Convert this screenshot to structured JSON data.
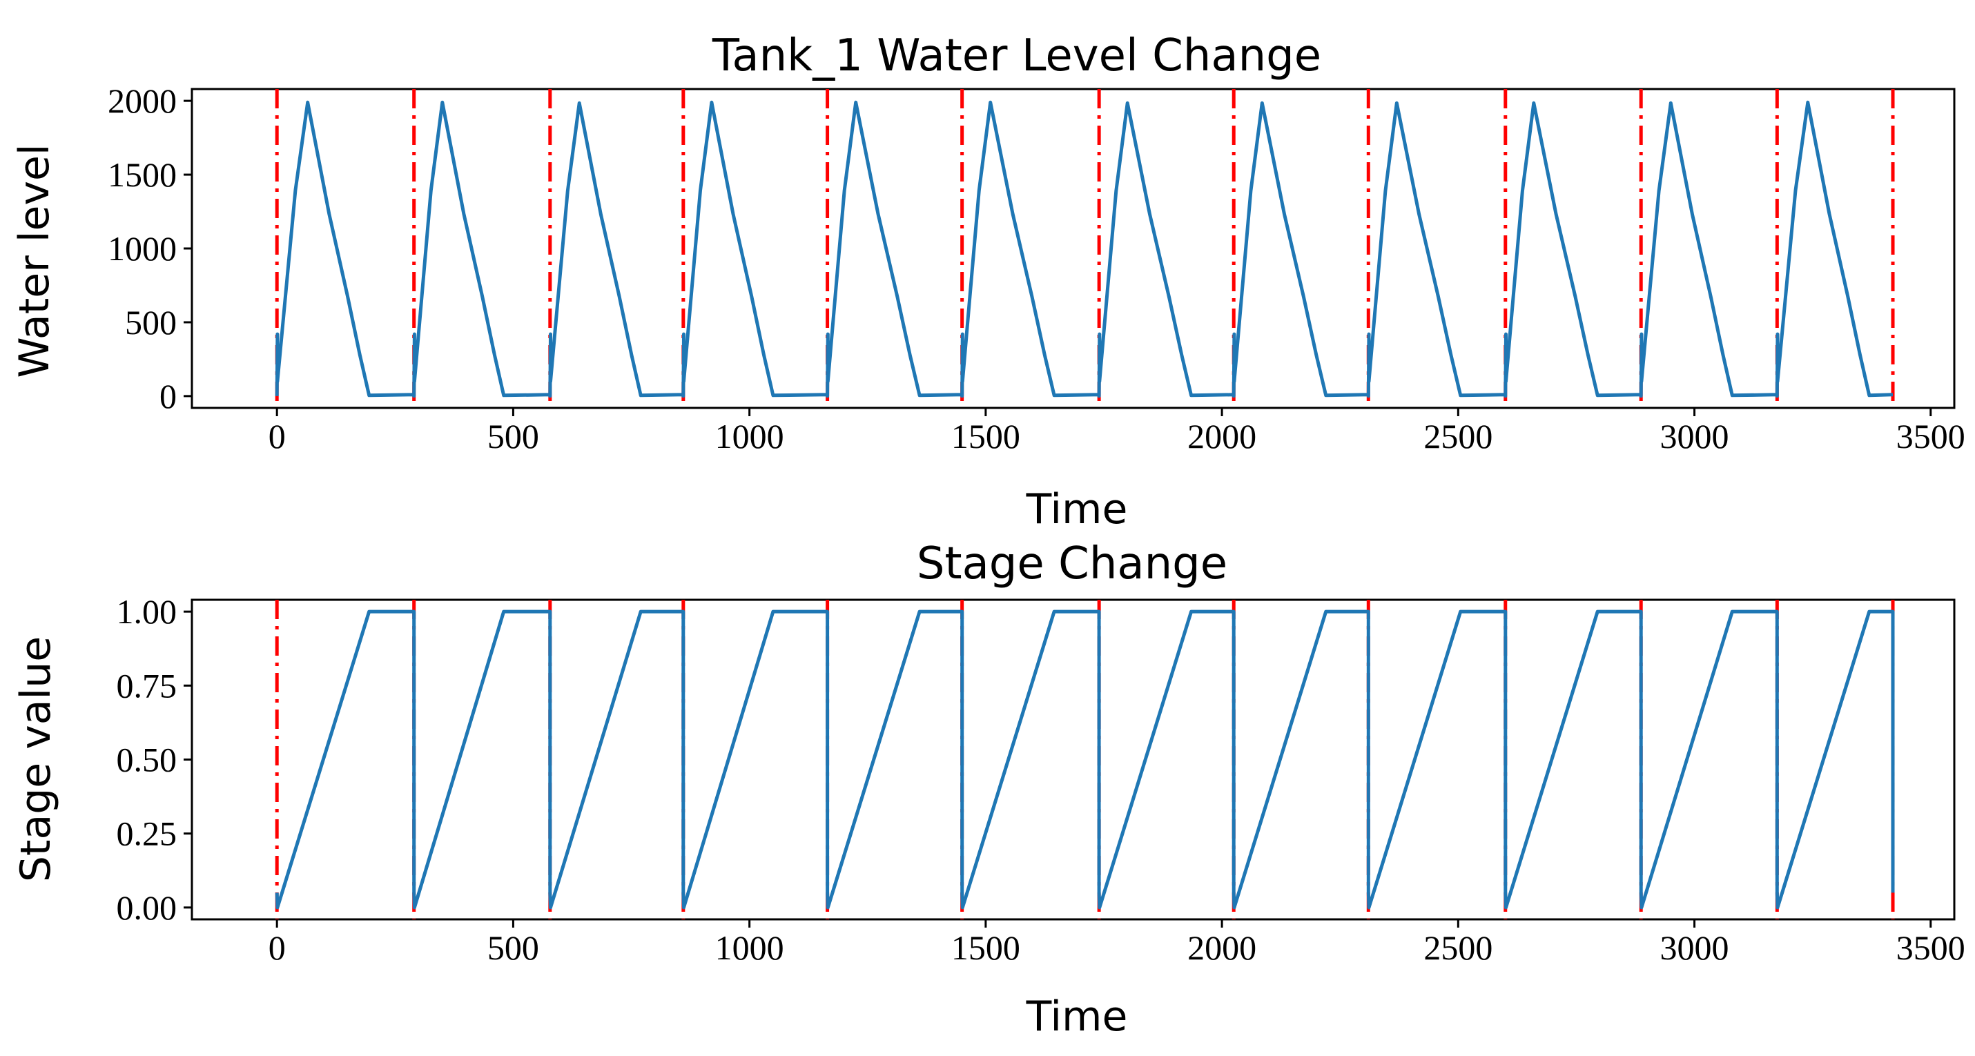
{
  "colors": {
    "series": "#1f77b4",
    "marker_line": "#ff0000",
    "axes": "#000000"
  },
  "chart_data": [
    {
      "type": "line",
      "title": "Tank_1 Water Level Change",
      "xlabel": "Time",
      "ylabel": "Water level",
      "xlim": [
        -180,
        3550
      ],
      "ylim": [
        -80,
        2080
      ],
      "xticks": [
        0,
        500,
        1000,
        1500,
        2000,
        2500,
        3000,
        3500
      ],
      "xtick_labels": [
        "0",
        "500",
        "1000",
        "1500",
        "2000",
        "2500",
        "3000",
        "3500"
      ],
      "yticks": [
        0,
        500,
        1000,
        1500,
        2000
      ],
      "ytick_labels": [
        "0",
        "500",
        "1000",
        "1500",
        "2000"
      ],
      "stage_boundaries": [
        0,
        290,
        578,
        860,
        1165,
        1450,
        1740,
        2025,
        2310,
        2600,
        2887,
        3175,
        3420
      ],
      "series": [
        {
          "name": "Water level",
          "cycles": [
            {
              "start": 0,
              "peak_t": 65,
              "peak": 1990,
              "fall_to_t": 195,
              "end": 290
            },
            {
              "start": 290,
              "peak_t": 350,
              "peak": 1990,
              "fall_to_t": 480,
              "end": 578
            },
            {
              "start": 578,
              "peak_t": 640,
              "peak": 1985,
              "fall_to_t": 770,
              "end": 860
            },
            {
              "start": 860,
              "peak_t": 920,
              "peak": 1990,
              "fall_to_t": 1050,
              "end": 1165
            },
            {
              "start": 1165,
              "peak_t": 1225,
              "peak": 1990,
              "fall_to_t": 1360,
              "end": 1450
            },
            {
              "start": 1450,
              "peak_t": 1510,
              "peak": 1990,
              "fall_to_t": 1645,
              "end": 1740
            },
            {
              "start": 1740,
              "peak_t": 1800,
              "peak": 1985,
              "fall_to_t": 1935,
              "end": 2025
            },
            {
              "start": 2025,
              "peak_t": 2085,
              "peak": 1985,
              "fall_to_t": 2220,
              "end": 2310
            },
            {
              "start": 2310,
              "peak_t": 2370,
              "peak": 1985,
              "fall_to_t": 2505,
              "end": 2600
            },
            {
              "start": 2600,
              "peak_t": 2660,
              "peak": 1985,
              "fall_to_t": 2795,
              "end": 2887
            },
            {
              "start": 2887,
              "peak_t": 2950,
              "peak": 1985,
              "fall_to_t": 3080,
              "end": 3175
            },
            {
              "start": 3175,
              "peak_t": 3240,
              "peak": 1990,
              "fall_to_t": 3370,
              "end": 3420
            }
          ]
        }
      ]
    },
    {
      "type": "line",
      "title": "Stage Change",
      "xlabel": "Time",
      "ylabel": "Stage value",
      "xlim": [
        -180,
        3550
      ],
      "ylim": [
        -0.04,
        1.04
      ],
      "xticks": [
        0,
        500,
        1000,
        1500,
        2000,
        2500,
        3000,
        3500
      ],
      "xtick_labels": [
        "0",
        "500",
        "1000",
        "1500",
        "2000",
        "2500",
        "3000",
        "3500"
      ],
      "yticks": [
        0,
        0.25,
        0.5,
        0.75,
        1.0
      ],
      "ytick_labels": [
        "0.00",
        "0.25",
        "0.50",
        "0.75",
        "1.00"
      ],
      "stage_boundaries": [
        0,
        290,
        578,
        860,
        1165,
        1450,
        1740,
        2025,
        2310,
        2600,
        2887,
        3175,
        3420
      ],
      "series": [
        {
          "name": "Stage value",
          "cycles": [
            {
              "start": 0,
              "reach_one_t": 195,
              "end": 290
            },
            {
              "start": 290,
              "reach_one_t": 480,
              "end": 578
            },
            {
              "start": 578,
              "reach_one_t": 770,
              "end": 860
            },
            {
              "start": 860,
              "reach_one_t": 1050,
              "end": 1165
            },
            {
              "start": 1165,
              "reach_one_t": 1360,
              "end": 1450
            },
            {
              "start": 1450,
              "reach_one_t": 1645,
              "end": 1740
            },
            {
              "start": 1740,
              "reach_one_t": 1935,
              "end": 2025
            },
            {
              "start": 2025,
              "reach_one_t": 2220,
              "end": 2310
            },
            {
              "start": 2310,
              "reach_one_t": 2505,
              "end": 2600
            },
            {
              "start": 2600,
              "reach_one_t": 2795,
              "end": 2887
            },
            {
              "start": 2887,
              "reach_one_t": 3080,
              "end": 3175
            },
            {
              "start": 3175,
              "reach_one_t": 3370,
              "end": 3420
            }
          ]
        }
      ]
    }
  ]
}
